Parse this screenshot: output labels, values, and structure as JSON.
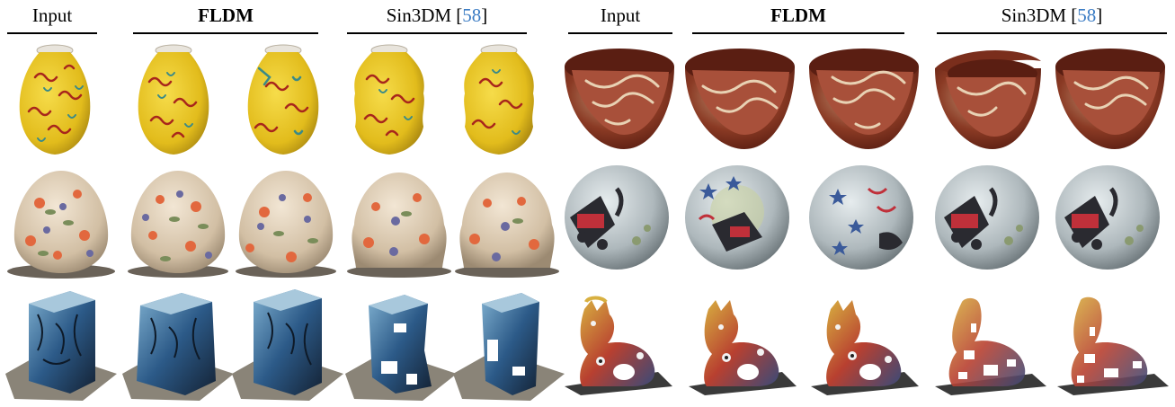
{
  "headers": [
    {
      "text": "Input",
      "bold": false
    },
    {
      "text": "FLDM",
      "bold": true
    },
    {
      "text": "Sin3DM [",
      "bold": false,
      "cite": "58",
      "suffix": "]"
    },
    {
      "text": "Input",
      "bold": false
    },
    {
      "text": "FLDM",
      "bold": true
    },
    {
      "text": "Sin3DM [",
      "bold": false,
      "cite": "58",
      "suffix": "]"
    }
  ],
  "rows": [
    {
      "left": "vase-yellow-floral",
      "right": "bowl-red-marbled"
    },
    {
      "left": "egg-floral",
      "right": "sphere-painted"
    },
    {
      "left": "block-blue-mosaic",
      "right": "cat-sculpture-mosaic"
    }
  ],
  "palette": {
    "vase_yellow": "#e8c420",
    "vase_red": "#a8261c",
    "vase_teal": "#3a8a88",
    "bowl_red": "#8a3220",
    "bowl_cream": "#e8d2b4",
    "egg_base": "#d8c7b0",
    "egg_flower": "#e2683e",
    "egg_leaf": "#7a8d5a",
    "sphere_base": "#b8c0c4",
    "sphere_red": "#c0303a",
    "sphere_dark": "#2a2a30",
    "block_blue": "#3a6fa8",
    "block_dark": "#1a2838",
    "block_light": "#a8c8dc",
    "cat_red": "#b83a28",
    "cat_yellow": "#d8b040",
    "cat_blue": "#3a5a8a"
  }
}
